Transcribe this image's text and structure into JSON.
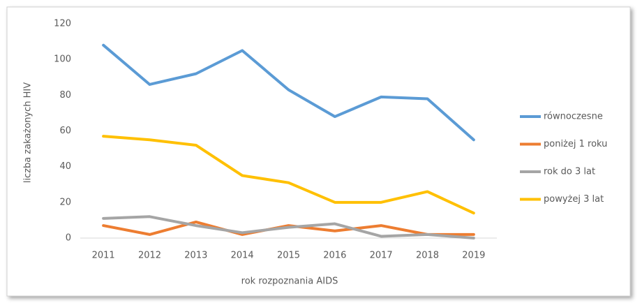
{
  "chart_data": {
    "type": "line",
    "y_label": "liczba zakażonych HIV",
    "x_label": "rok rozpoznania AIDS",
    "categories": [
      "2011",
      "2012",
      "2013",
      "2014",
      "2015",
      "2016",
      "2017",
      "2018",
      "2019"
    ],
    "series": [
      {
        "name": "równoczesne",
        "color": "#5b9bd5",
        "values": [
          108,
          86,
          92,
          105,
          83,
          68,
          79,
          78,
          55
        ]
      },
      {
        "name": "poniżej 1 roku",
        "color": "#ed7d31",
        "values": [
          7,
          2,
          9,
          2,
          7,
          4,
          7,
          2,
          2
        ]
      },
      {
        "name": "rok do 3 lat",
        "color": "#a5a5a5",
        "values": [
          11,
          12,
          7,
          3,
          6,
          8,
          1,
          2,
          0
        ]
      },
      {
        "name": "powyżej 3 lat",
        "color": "#ffc000",
        "values": [
          57,
          55,
          52,
          35,
          31,
          20,
          20,
          26,
          14
        ]
      }
    ],
    "ylim": [
      0,
      120
    ],
    "yticks": [
      0,
      20,
      40,
      60,
      80,
      100,
      120
    ],
    "grid": false,
    "legend": "right"
  }
}
